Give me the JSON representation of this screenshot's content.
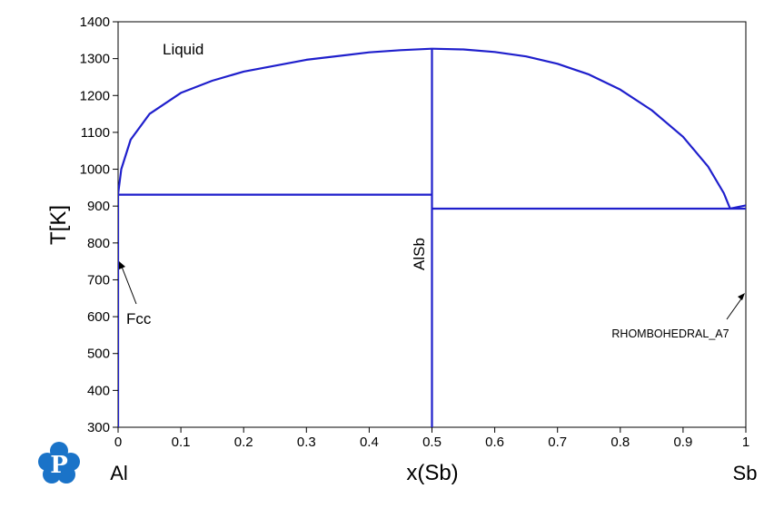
{
  "chart_data": {
    "type": "line",
    "title": "",
    "xlabel": "x(Sb)",
    "ylabel": "T[K]",
    "xlim": [
      0,
      1
    ],
    "ylim": [
      300,
      1400
    ],
    "xticks": [
      "0",
      "0.1",
      "0.2",
      "0.3",
      "0.4",
      "0.5",
      "0.6",
      "0.7",
      "0.8",
      "0.9",
      "1"
    ],
    "yticks": [
      "300",
      "400",
      "500",
      "600",
      "700",
      "800",
      "900",
      "1000",
      "1100",
      "1200",
      "1300",
      "1400"
    ],
    "grid": false,
    "corner_labels": {
      "left": "Al",
      "right": "Sb"
    },
    "annotations": {
      "liquid": "Liquid",
      "fcc": "Fcc",
      "alsb": "AlSb",
      "rhombohedral": "RHOMBOHEDRAL_A7"
    },
    "series": [
      {
        "values": [
          [
            0.0,
            933
          ],
          [
            0.005,
            1000
          ],
          [
            0.02,
            1080
          ],
          [
            0.05,
            1150
          ],
          [
            0.1,
            1207
          ],
          [
            0.15,
            1240
          ],
          [
            0.2,
            1265
          ],
          [
            0.3,
            1297
          ],
          [
            0.4,
            1317
          ],
          [
            0.45,
            1323
          ],
          [
            0.5,
            1327
          ]
        ]
      },
      {
        "values": [
          [
            0.5,
            1327
          ],
          [
            0.55,
            1325
          ],
          [
            0.6,
            1318
          ],
          [
            0.65,
            1306
          ],
          [
            0.7,
            1286
          ],
          [
            0.75,
            1257
          ],
          [
            0.8,
            1216
          ],
          [
            0.85,
            1160
          ],
          [
            0.9,
            1088
          ],
          [
            0.94,
            1007
          ],
          [
            0.965,
            935
          ],
          [
            0.975,
            893
          ]
        ]
      },
      {
        "values": [
          [
            0.0,
            931
          ],
          [
            0.5,
            931
          ]
        ]
      },
      {
        "values": [
          [
            0.5,
            893
          ],
          [
            1.0,
            893
          ]
        ]
      },
      {
        "values": [
          [
            0.975,
            893
          ],
          [
            1.0,
            902
          ]
        ]
      },
      {
        "values": [
          [
            0.5,
            300
          ],
          [
            0.5,
            1327
          ]
        ]
      },
      {
        "values": [
          [
            0.0,
            300
          ],
          [
            0.0,
            933
          ]
        ]
      }
    ],
    "line_color": "#1f1fcc"
  },
  "logo": {
    "icon": "pandat-p-logo-icon",
    "letter": "P",
    "color": "#1a73c8"
  }
}
